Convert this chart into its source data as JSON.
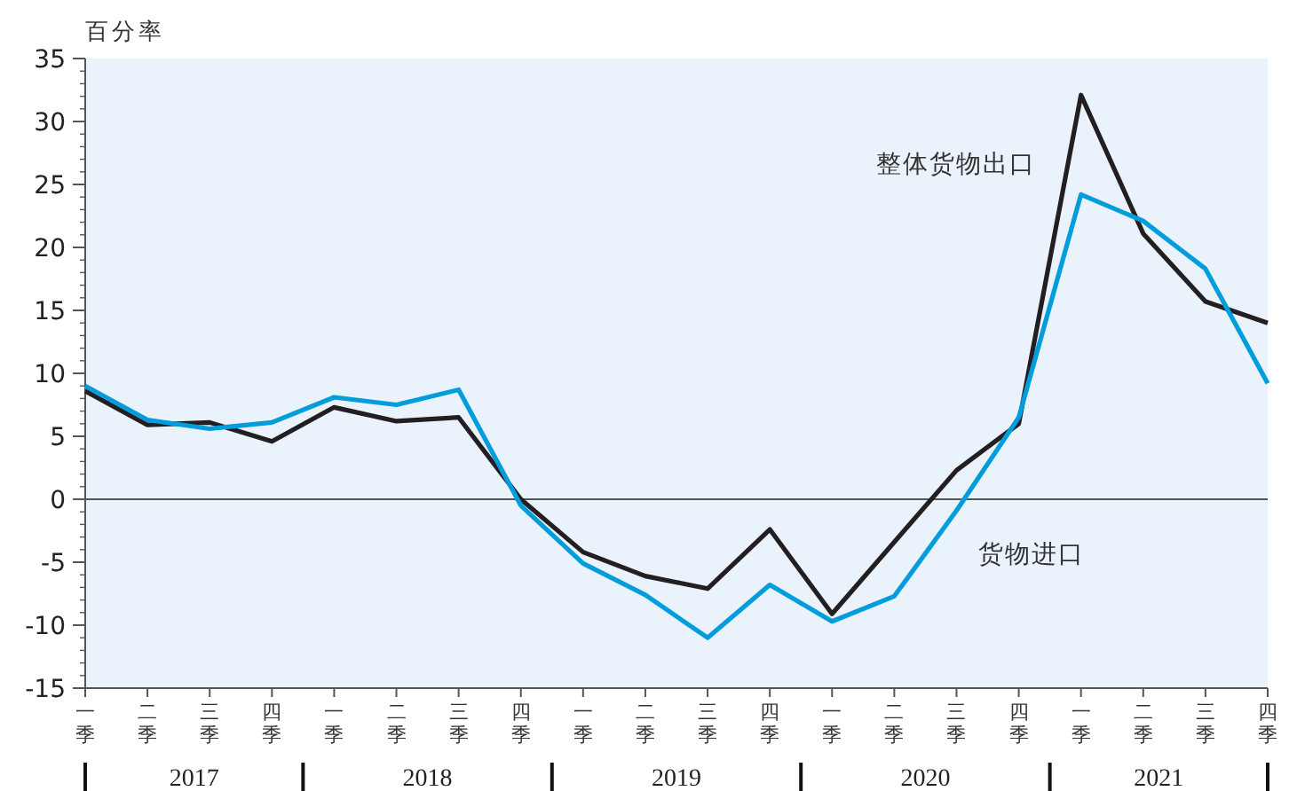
{
  "chart_data": {
    "type": "line",
    "ylabel": "百分率",
    "categories": [
      "一季",
      "二季",
      "三季",
      "四季",
      "一季",
      "二季",
      "三季",
      "四季",
      "一季",
      "二季",
      "三季",
      "四季",
      "一季",
      "二季",
      "三季",
      "四季",
      "一季",
      "二季",
      "三季",
      "四季"
    ],
    "series": [
      {
        "name": "整体货物出口",
        "color": "#231f20",
        "values": [
          8.6,
          5.9,
          6.1,
          4.6,
          7.3,
          6.2,
          6.5,
          0,
          -4.2,
          -6.1,
          -7.1,
          -2.4,
          -9.1,
          -3.4,
          2.3,
          6.0,
          32.1,
          21.1,
          15.7,
          14.0
        ]
      },
      {
        "name": "货物进口",
        "color": "#009ddc",
        "values": [
          9.0,
          6.3,
          5.6,
          6.1,
          8.1,
          7.5,
          8.7,
          -0.5,
          -5.1,
          -7.6,
          -11.0,
          -6.8,
          -9.7,
          -7.7,
          -0.9,
          6.5,
          24.2,
          22.1,
          18.3,
          9.2
        ]
      }
    ],
    "annotations": [
      "2017",
      "2018",
      "2019",
      "2020",
      "2021"
    ],
    "ylim": [
      -15,
      35
    ],
    "yticks": [
      -15,
      -10,
      -5,
      0,
      5,
      10,
      15,
      20,
      25,
      30,
      35
    ],
    "ref_lines": [
      {
        "axis": "y",
        "value": 0,
        "color": "#555555"
      }
    ],
    "grid": false,
    "marker": "none",
    "line_style": "solid"
  }
}
